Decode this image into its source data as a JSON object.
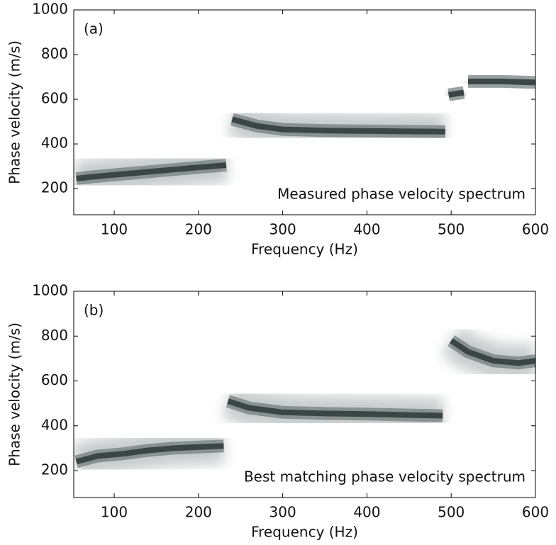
{
  "chart_data": [
    {
      "type": "line",
      "annotation": "(a)",
      "label": "Measured phase velocity spectrum",
      "xlabel": "Frequency (Hz)",
      "ylabel": "Phase velocity (m/s)",
      "xlim": [
        52,
        600
      ],
      "ylim": [
        83,
        1000
      ],
      "xticks": [
        100,
        200,
        300,
        400,
        500,
        600
      ],
      "yticks": [
        200,
        400,
        600,
        800,
        1000
      ],
      "color": "#3a4545",
      "x": [
        55,
        80,
        110,
        140,
        170,
        200,
        233,
        236,
        240,
        270,
        300,
        350,
        400,
        450,
        493,
        495,
        497,
        515,
        518,
        520,
        560,
        600
      ],
      "values": [
        245,
        255,
        265,
        275,
        285,
        295,
        305,
        null,
        510,
        480,
        465,
        460,
        458,
        456,
        455,
        null,
        620,
        630,
        null,
        680,
        680,
        675
      ]
    },
    {
      "type": "line",
      "annotation": "(b)",
      "label": "Best matching phase velocity spectrum",
      "xlabel": "Frequency (Hz)",
      "ylabel": "Phase velocity (m/s)",
      "xlim": [
        52,
        600
      ],
      "ylim": [
        80,
        1000
      ],
      "xticks": [
        100,
        200,
        300,
        400,
        500,
        600
      ],
      "yticks": [
        200,
        400,
        600,
        800,
        1000
      ],
      "color": "#3a4545",
      "x": [
        55,
        80,
        110,
        140,
        170,
        200,
        230,
        232,
        235,
        260,
        300,
        350,
        400,
        450,
        490,
        495,
        500,
        520,
        550,
        580,
        600
      ],
      "values": [
        240,
        265,
        275,
        290,
        300,
        305,
        310,
        null,
        510,
        480,
        460,
        455,
        452,
        448,
        445,
        null,
        780,
        730,
        690,
        680,
        690
      ]
    }
  ]
}
